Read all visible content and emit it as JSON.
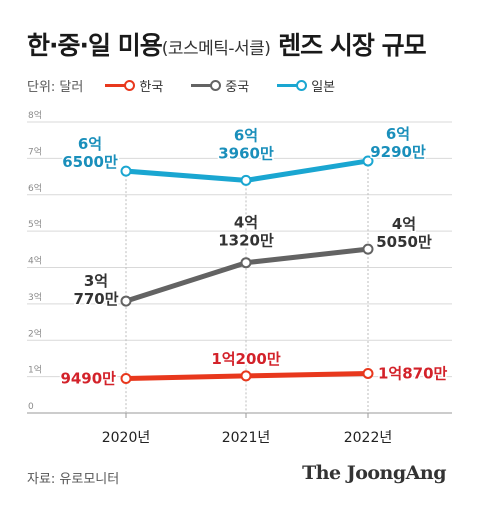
{
  "title": {
    "main": "한·중·일 미용",
    "sub": "(코스메틱-서클)",
    "rest": " 렌즈 시장 규모"
  },
  "legend": {
    "unit": "단위: 달러"
  },
  "source": "자료: 유로모니터",
  "brand": "The JoongAng",
  "chart_data": {
    "type": "line",
    "categories": [
      "2020년",
      "2021년",
      "2022년"
    ],
    "y_ticks": [
      "0",
      "1억",
      "2억",
      "3억",
      "4억",
      "5억",
      "6억",
      "7억",
      "8억"
    ],
    "ylim": [
      0,
      8
    ],
    "grid": true,
    "series": [
      {
        "name": "한국",
        "color": "#e8381d",
        "label_color": "#d3222a",
        "values": [
          0.949,
          1.02,
          1.087
        ],
        "labels": [
          [
            "9490만"
          ],
          [
            "1억200만"
          ],
          [
            "1억870만"
          ]
        ]
      },
      {
        "name": "중국",
        "color": "#636363",
        "label_color": "#333333",
        "values": [
          3.077,
          4.132,
          4.505
        ],
        "labels": [
          [
            "3억",
            "770만"
          ],
          [
            "4억",
            "1320만"
          ],
          [
            "4억",
            "5050만"
          ]
        ]
      },
      {
        "name": "일본",
        "color": "#1aa6d1",
        "label_color": "#1a8fbb",
        "values": [
          6.65,
          6.396,
          6.929
        ],
        "labels": [
          [
            "6억",
            "6500만"
          ],
          [
            "6억",
            "3960만"
          ],
          [
            "6억",
            "9290만"
          ]
        ]
      }
    ]
  }
}
